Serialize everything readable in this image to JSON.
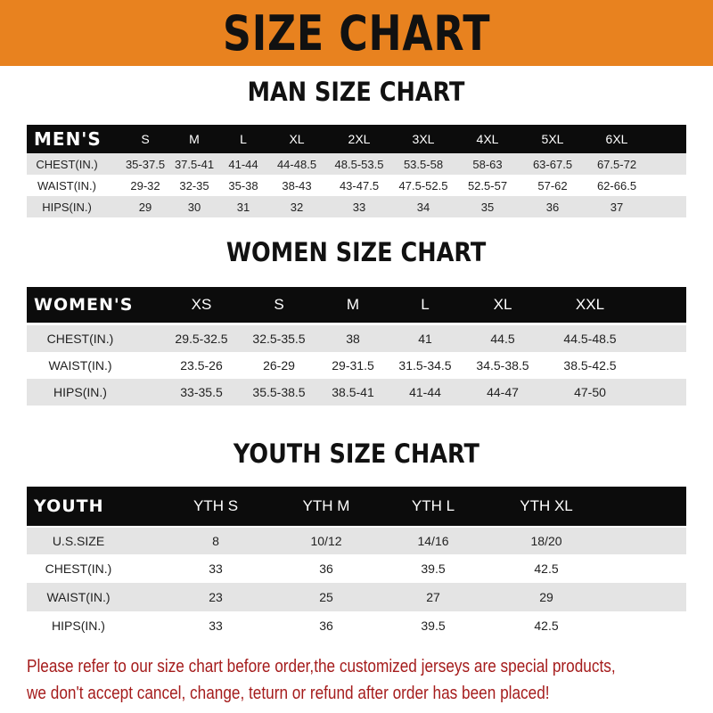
{
  "banner": {
    "title": "SIZE CHART",
    "color": "#e8821f"
  },
  "men": {
    "title": "MAN SIZE CHART",
    "header": [
      "MEN'S",
      "S",
      "M",
      "L",
      "XL",
      "2XL",
      "3XL",
      "4XL",
      "5XL",
      "6XL"
    ],
    "rows": [
      [
        "CHEST(IN.)",
        "35-37.5",
        "37.5-41",
        "41-44",
        "44-48.5",
        "48.5-53.5",
        "53.5-58",
        "58-63",
        "63-67.5",
        "67.5-72"
      ],
      [
        "WAIST(IN.)",
        "29-32",
        "32-35",
        "35-38",
        "38-43",
        "43-47.5",
        "47.5-52.5",
        "52.5-57",
        "57-62",
        "62-66.5"
      ],
      [
        "HIPS(IN.)",
        "29",
        "30",
        "31",
        "32",
        "33",
        "34",
        "35",
        "36",
        "37"
      ]
    ]
  },
  "women": {
    "title": "WOMEN SIZE CHART",
    "header": [
      "WOMEN'S",
      "XS",
      "S",
      "M",
      "L",
      "XL",
      "XXL"
    ],
    "rows": [
      [
        "CHEST(IN.)",
        "29.5-32.5",
        "32.5-35.5",
        "38",
        "41",
        "44.5",
        "44.5-48.5"
      ],
      [
        "WAIST(IN.)",
        "23.5-26",
        "26-29",
        "29-31.5",
        "31.5-34.5",
        "34.5-38.5",
        "38.5-42.5"
      ],
      [
        "HIPS(IN.)",
        "33-35.5",
        "35.5-38.5",
        "38.5-41",
        "41-44",
        "44-47",
        "47-50"
      ]
    ]
  },
  "youth": {
    "title": "YOUTH SIZE CHART",
    "header": [
      "YOUTH",
      "YTH S",
      "YTH M",
      "YTH L",
      "YTH XL"
    ],
    "rows": [
      [
        "U.S.SIZE",
        "8",
        "10/12",
        "14/16",
        "18/20"
      ],
      [
        "CHEST(IN.)",
        "33",
        "36",
        "39.5",
        "42.5"
      ],
      [
        "WAIST(IN.)",
        "23",
        "25",
        "27",
        "29"
      ],
      [
        "HIPS(IN.)",
        "33",
        "36",
        "39.5",
        "42.5"
      ]
    ]
  },
  "footer": {
    "line1": "Please refer to our size chart before order,the customized jerseys are special products,",
    "line2": "we don't accept cancel, change, teturn or refund after order has been placed!",
    "color": "#a51c1c"
  }
}
